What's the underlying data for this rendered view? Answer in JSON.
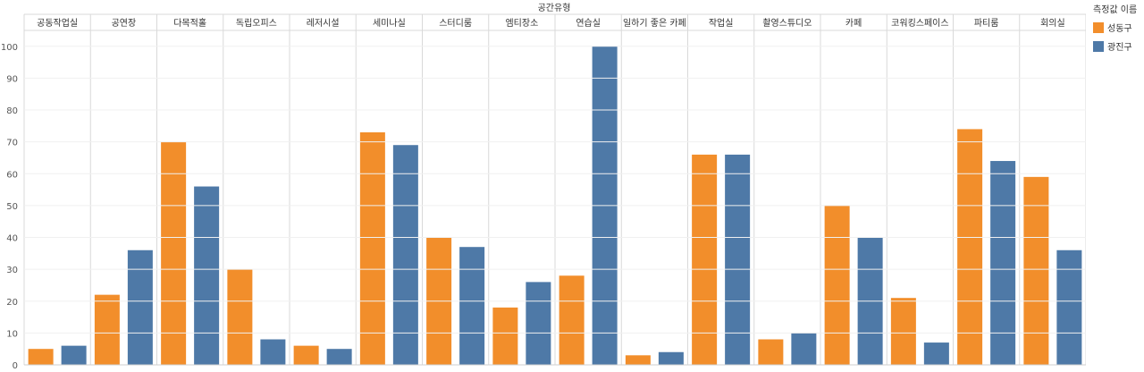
{
  "chart_data": {
    "type": "bar",
    "title": "공간유형",
    "categories": [
      "공동작업실",
      "공연장",
      "다목적홀",
      "독립오피스",
      "레저시설",
      "세미나실",
      "스터디룸",
      "엠티장소",
      "연습실",
      "일하기 좋은 카페",
      "작업실",
      "촬영스튜디오",
      "카페",
      "코워킹스페이스",
      "파티룸",
      "회의실"
    ],
    "series": [
      {
        "name": "성동구",
        "color": "#f28e2b",
        "values": [
          5,
          22,
          70,
          30,
          6,
          73,
          40,
          18,
          28,
          3,
          66,
          8,
          50,
          21,
          74,
          59
        ]
      },
      {
        "name": "광진구",
        "color": "#4e79a7",
        "values": [
          6,
          36,
          56,
          8,
          5,
          69,
          37,
          26,
          100,
          4,
          66,
          10,
          40,
          7,
          64,
          36
        ]
      }
    ],
    "ylim": [
      0,
      105
    ],
    "yticks": [
      0,
      10,
      20,
      30,
      40,
      50,
      60,
      70,
      80,
      90,
      100
    ],
    "legend_title": "측정값 이름",
    "legend_position": "right",
    "grid": true
  }
}
